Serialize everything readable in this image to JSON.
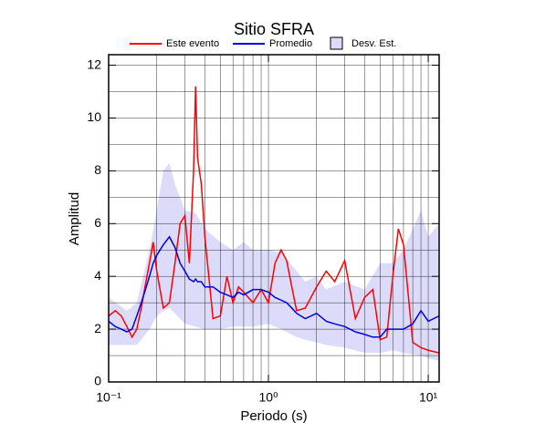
{
  "chart_data": {
    "type": "line",
    "title": "Sitio SFRA",
    "x_label": "Periodo (s)",
    "y_label": "Amplitud",
    "xscale": "log",
    "grid": true,
    "xlim": [
      0.1,
      11.7
    ],
    "ylim": [
      0,
      12.4
    ],
    "xticks": [
      {
        "value": 0.1,
        "label": "10⁻¹"
      },
      {
        "value": 1,
        "label": "10⁰"
      },
      {
        "value": 10,
        "label": "10¹"
      }
    ],
    "minor_xticks": [
      0.2,
      0.3,
      0.4,
      0.5,
      0.6,
      0.7,
      0.8,
      0.9,
      2,
      3,
      4,
      5,
      6,
      7,
      8,
      9
    ],
    "yticks": [
      0,
      2,
      4,
      6,
      8,
      10,
      12
    ],
    "minor_yticks": [
      1,
      3,
      5,
      7,
      9,
      11
    ],
    "x": [
      0.1,
      0.11,
      0.12,
      0.13,
      0.14,
      0.15,
      0.16,
      0.17,
      0.18,
      0.19,
      0.2,
      0.22,
      0.24,
      0.26,
      0.28,
      0.3,
      0.32,
      0.34,
      0.35,
      0.36,
      0.38,
      0.4,
      0.45,
      0.5,
      0.55,
      0.6,
      0.65,
      0.7,
      0.8,
      0.9,
      1.0,
      1.1,
      1.2,
      1.3,
      1.4,
      1.5,
      1.7,
      2.0,
      2.3,
      2.6,
      3.0,
      3.5,
      4.0,
      4.5,
      5.0,
      5.5,
      6.0,
      6.5,
      7.0,
      8.0,
      9.0,
      10,
      11.7
    ],
    "series": [
      {
        "name": "Este evento",
        "color": "#ff0000",
        "values": [
          2.5,
          2.7,
          2.5,
          2.1,
          1.7,
          2.0,
          2.8,
          3.7,
          4.5,
          5.3,
          4.2,
          2.8,
          3.0,
          4.5,
          6.0,
          6.3,
          4.5,
          8.0,
          11.2,
          8.5,
          7.5,
          5.5,
          2.4,
          2.5,
          4.0,
          3.0,
          3.6,
          3.4,
          3.0,
          3.5,
          3.0,
          4.5,
          5.0,
          4.6,
          3.6,
          2.7,
          2.8,
          3.6,
          4.2,
          3.8,
          4.6,
          2.4,
          3.2,
          3.5,
          1.6,
          1.7,
          4.0,
          5.8,
          5.2,
          1.5,
          1.3,
          1.2,
          1.1
        ]
      },
      {
        "name": "Promedio",
        "color": "#0000dd",
        "values": [
          2.3,
          2.1,
          2.0,
          1.9,
          2.0,
          2.5,
          3.0,
          3.5,
          4.0,
          4.5,
          4.8,
          5.2,
          5.5,
          5.1,
          4.5,
          4.2,
          3.9,
          3.8,
          3.9,
          3.8,
          3.8,
          3.6,
          3.6,
          3.4,
          3.3,
          3.2,
          3.4,
          3.3,
          3.5,
          3.5,
          3.4,
          3.2,
          3.1,
          3.0,
          2.8,
          2.6,
          2.4,
          2.6,
          2.3,
          2.2,
          2.1,
          1.9,
          1.8,
          1.7,
          1.7,
          2.0,
          2.0,
          2.0,
          2.0,
          2.2,
          2.7,
          2.3,
          2.5
        ]
      }
    ],
    "band": {
      "name": "Desv. Est.",
      "color": "#dcdcfa",
      "x": [
        0.1,
        0.13,
        0.15,
        0.18,
        0.2,
        0.22,
        0.24,
        0.26,
        0.3,
        0.35,
        0.4,
        0.5,
        0.6,
        0.7,
        0.8,
        1.0,
        1.2,
        1.5,
        1.7,
        2.0,
        2.3,
        3.0,
        4.0,
        5.0,
        6.0,
        7.0,
        9.0,
        10,
        11.7
      ],
      "upper": [
        3.2,
        2.7,
        3.0,
        5.0,
        6.5,
        8.0,
        8.3,
        7.5,
        6.5,
        6.4,
        5.8,
        5.3,
        5.0,
        5.3,
        5.0,
        5.0,
        4.9,
        4.2,
        3.8,
        4.0,
        3.5,
        3.8,
        3.5,
        4.5,
        4.5,
        5.0,
        6.5,
        5.5,
        6.0
      ],
      "lower": [
        1.4,
        1.4,
        1.4,
        2.0,
        2.5,
        2.7,
        2.8,
        2.6,
        2.2,
        2.1,
        2.0,
        2.0,
        2.1,
        2.1,
        2.1,
        2.2,
        2.0,
        1.7,
        1.6,
        1.5,
        1.4,
        1.3,
        1.1,
        1.1,
        1.2,
        1.1,
        1.0,
        0.9,
        0.8
      ]
    }
  }
}
